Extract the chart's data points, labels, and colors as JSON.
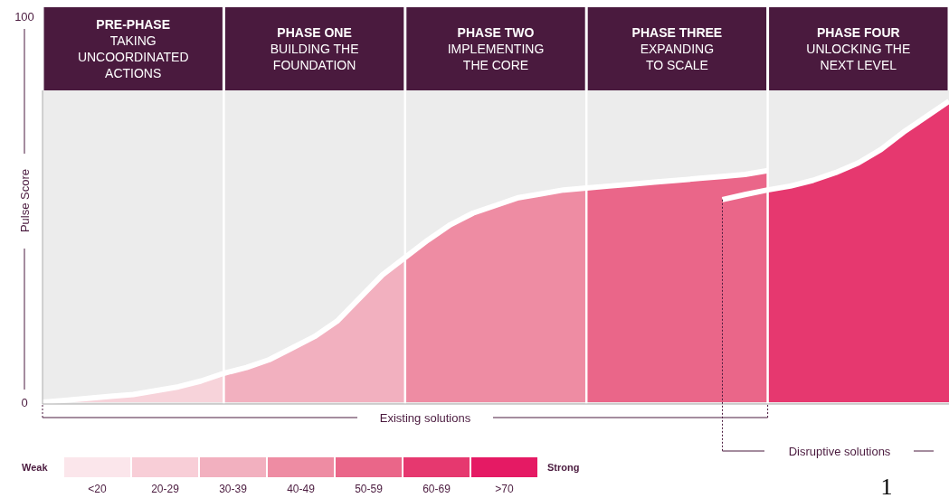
{
  "chart_data": {
    "type": "area",
    "ylabel": "Pulse Score",
    "categories": [
      null,
      null,
      null,
      null,
      "PRE-PHASE\nTAKING\nUNCOORDINATED\nACTIONS",
      null,
      null,
      null,
      null,
      null,
      null,
      null,
      "PHASE ONE\nBUILDING THE\nFOUNDATION",
      null,
      null,
      null,
      null,
      null,
      null,
      null,
      "PHASE TWO\nIMPLEMENTING\nTHE CORE",
      null,
      null,
      null,
      null,
      null,
      null,
      null,
      "PHASE THREE\nEXPANDING\nTO SCALE",
      null,
      null,
      null,
      null,
      null,
      null,
      null,
      "PHASE FOUR\nUNLOCKING THE\nNEXT LEVEL",
      null,
      null,
      null,
      null
    ],
    "ylim": [
      0,
      100
    ],
    "yticks": [
      0,
      100
    ],
    "grid": "x",
    "series": [
      {
        "color": "#f7d3da",
        "values": [
          0,
          0.5,
          1,
          1.5,
          2,
          3,
          4,
          5.5,
          7.5,
          null,
          null,
          null,
          null,
          null,
          null,
          null,
          null,
          null,
          null,
          null,
          null,
          null,
          null,
          null,
          null,
          null,
          null,
          null,
          null,
          null,
          null,
          null,
          null,
          null,
          null,
          null,
          null,
          null,
          null,
          null,
          null
        ]
      },
      {
        "color": "#f2b0bf",
        "values": [
          null,
          null,
          null,
          null,
          null,
          null,
          null,
          null,
          7.5,
          9,
          11,
          14,
          17,
          21,
          27,
          33,
          37.5,
          null,
          null,
          null,
          null,
          null,
          null,
          null,
          null,
          null,
          null,
          null,
          null,
          null,
          null,
          null,
          null,
          null,
          null,
          null,
          null,
          null,
          null,
          null,
          null
        ]
      },
      {
        "color": "#ee8ca3",
        "values": [
          null,
          null,
          null,
          null,
          null,
          null,
          null,
          null,
          null,
          null,
          null,
          null,
          null,
          null,
          null,
          null,
          37.5,
          42,
          46,
          49,
          51,
          53,
          54,
          55,
          55.5,
          null,
          null,
          null,
          null,
          null,
          null,
          null,
          null,
          null,
          null,
          null,
          null,
          null,
          null,
          null,
          null
        ]
      },
      {
        "color": "#ea6689",
        "values": [
          null,
          null,
          null,
          null,
          null,
          null,
          null,
          null,
          null,
          null,
          null,
          null,
          null,
          null,
          null,
          null,
          null,
          null,
          null,
          null,
          null,
          null,
          null,
          null,
          55.5,
          56,
          56.5,
          57,
          57.5,
          58,
          58.5,
          59,
          60,
          null,
          null,
          null,
          null,
          null,
          null,
          null,
          null
        ]
      },
      {
        "color": "#e6386f",
        "values": [
          null,
          null,
          null,
          null,
          null,
          null,
          null,
          null,
          null,
          null,
          null,
          null,
          null,
          null,
          null,
          null,
          null,
          null,
          null,
          null,
          null,
          null,
          null,
          null,
          null,
          null,
          null,
          null,
          null,
          null,
          null,
          null,
          55,
          56,
          57.5,
          59.5,
          62,
          65.5,
          70,
          74,
          78
        ]
      },
      {
        "type": "line",
        "color": "#ffffff",
        "values": [
          0,
          0.5,
          1,
          1.5,
          2,
          3,
          4,
          5.5,
          7.5,
          9,
          11,
          14,
          17,
          21,
          27,
          33,
          37.5,
          42,
          46,
          49,
          51,
          53,
          54,
          55,
          55.5,
          56,
          56.5,
          57,
          57.5,
          58,
          58.5,
          59,
          60,
          null,
          null,
          null,
          null,
          null,
          null,
          null,
          null
        ]
      },
      {
        "type": "line",
        "color": "#ffffff",
        "values": [
          null,
          null,
          null,
          null,
          null,
          null,
          null,
          null,
          null,
          null,
          null,
          null,
          null,
          null,
          null,
          null,
          null,
          null,
          null,
          null,
          null,
          null,
          null,
          null,
          null,
          null,
          null,
          null,
          null,
          null,
          52.5,
          53.8,
          55,
          56,
          57.5,
          59.5,
          62,
          65.5,
          70,
          74,
          78
        ]
      }
    ],
    "annotations": [
      "Existing solutions",
      "Disruptive solutions",
      "Weak",
      "Strong",
      "<20",
      "20-29",
      "30-39",
      "40-49",
      "50-59",
      "60-69",
      ">70",
      "1"
    ]
  }
}
